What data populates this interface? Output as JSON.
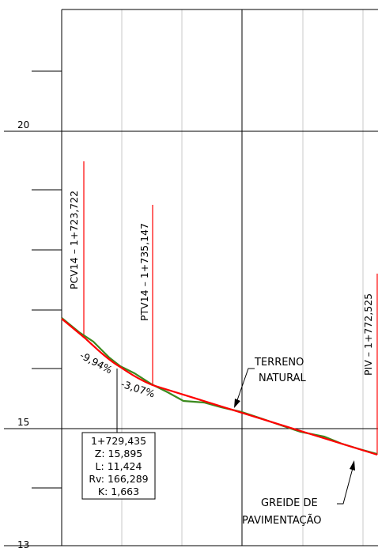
{
  "axis": {
    "labels": {
      "v20": "20",
      "v15": "15",
      "v13": "13"
    }
  },
  "markers": {
    "pcv": "PCV14 – 1+723,722",
    "ptv": "PTV14 – 1+735,147",
    "piv": "PIV – 1+772,525"
  },
  "grades": {
    "g1": "-9,94%",
    "g2": "-3,07%"
  },
  "station_box": {
    "line1": "1+729,435",
    "line2": "Z: 15,895",
    "line3": "L: 11,424",
    "line4": "Rv: 166,289",
    "line5": "K: 1,663"
  },
  "labels": {
    "terreno_1": "TERRENO",
    "terreno_2": "NATURAL",
    "greide_1": "GREIDE DE",
    "greide_2": "PAVIMENTAÇÃO"
  },
  "colors": {
    "grade_line": "#ff0000",
    "terrain_line": "#3b8a1e",
    "grid_major": "#000000",
    "grid_minor": "#c8c8c8"
  }
}
